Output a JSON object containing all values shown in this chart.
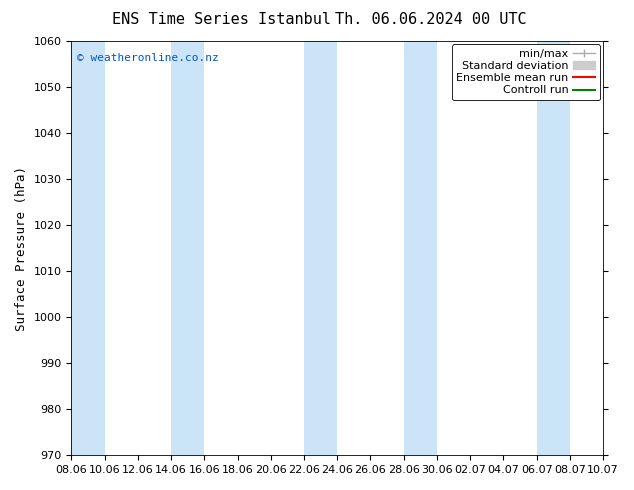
{
  "title_left": "ENS Time Series Istanbul",
  "title_right": "Th. 06.06.2024 00 UTC",
  "ylabel": "Surface Pressure (hPa)",
  "ylim": [
    970,
    1060
  ],
  "yticks": [
    970,
    980,
    990,
    1000,
    1010,
    1020,
    1030,
    1040,
    1050,
    1060
  ],
  "xtick_labels": [
    "08.06",
    "10.06",
    "12.06",
    "14.06",
    "16.06",
    "18.06",
    "20.06",
    "22.06",
    "24.06",
    "26.06",
    "28.06",
    "30.06",
    "02.07",
    "04.07",
    "06.07",
    "08.07",
    "10.07"
  ],
  "copyright_text": "© weatheronline.co.nz",
  "copyright_color": "#0055cc",
  "background_color": "#ffffff",
  "plot_bg_color": "#ffffff",
  "shaded_band_color": "#cce4f7",
  "shaded_band_alpha": 1.0,
  "legend_items": [
    {
      "label": "min/max",
      "color": "#aaaaaa",
      "lw": 1.0
    },
    {
      "label": "Standard deviation",
      "color": "#cccccc",
      "lw": 5
    },
    {
      "label": "Ensemble mean run",
      "color": "#ff0000",
      "lw": 1.5
    },
    {
      "label": "Controll run",
      "color": "#008000",
      "lw": 1.5
    }
  ],
  "title_fontsize": 11,
  "axis_fontsize": 9,
  "tick_fontsize": 8,
  "legend_fontsize": 8,
  "band_indices": [
    0,
    3,
    7,
    10,
    14
  ]
}
